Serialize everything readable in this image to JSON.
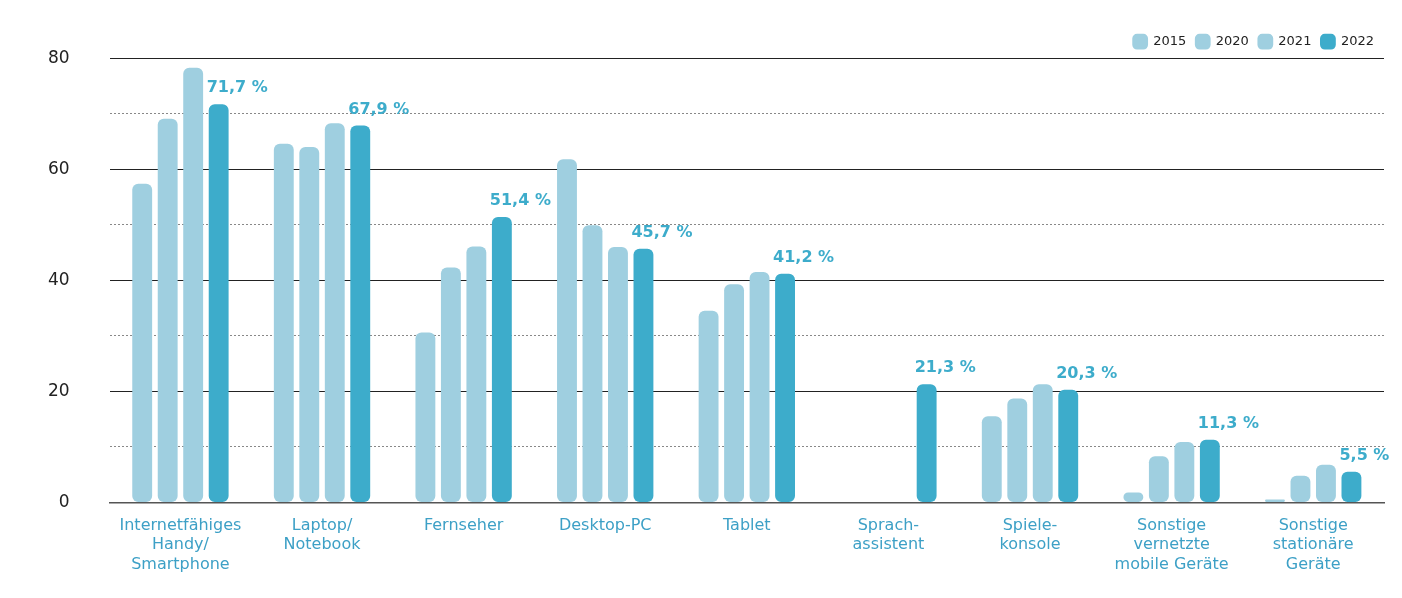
{
  "chart_data": {
    "type": "bar",
    "categories": [
      "Internetfähiges Handy/ Smartphone",
      "Laptop/ Notebook",
      "Fernseher",
      "Desktop-PC",
      "Tablet",
      "Sprach- assistent",
      "Spiele- konsole",
      "Sonstige vernetzte mobile Geräte",
      "Sonstige stationäre Geräte"
    ],
    "series": [
      {
        "name": "2015",
        "color": "#9fcfe0",
        "values": [
          57.4,
          64.6,
          30.6,
          61.8,
          34.5,
          null,
          15.5,
          1.8,
          0.5
        ]
      },
      {
        "name": "2020",
        "color": "#9fcfe0",
        "values": [
          69.1,
          64.0,
          42.3,
          49.9,
          39.3,
          null,
          18.7,
          8.3,
          4.8
        ]
      },
      {
        "name": "2021",
        "color": "#9fcfe0",
        "values": [
          78.3,
          68.3,
          46.1,
          46.0,
          41.5,
          null,
          21.3,
          10.9,
          6.8
        ]
      },
      {
        "name": "2022",
        "color": "#3daccb",
        "values": [
          71.7,
          67.9,
          51.4,
          45.7,
          41.2,
          21.3,
          20.3,
          11.3,
          5.5
        ],
        "value_labels": [
          "71,7 %",
          "67,9 %",
          "51,4 %",
          "45,7 %",
          "41,2 %",
          "21,3 %",
          "20,3 %",
          "11,3 %",
          "5,5 %"
        ]
      }
    ],
    "ylim": [
      0,
      80
    ],
    "yticks": [
      0,
      {
        "value": 10,
        "label": null
      },
      20,
      {
        "value": 30,
        "label": null
      },
      40,
      {
        "value": 50,
        "label": null
      },
      60,
      {
        "value": 70,
        "label": null
      },
      80
    ],
    "grid": "y",
    "legend": "top right"
  }
}
